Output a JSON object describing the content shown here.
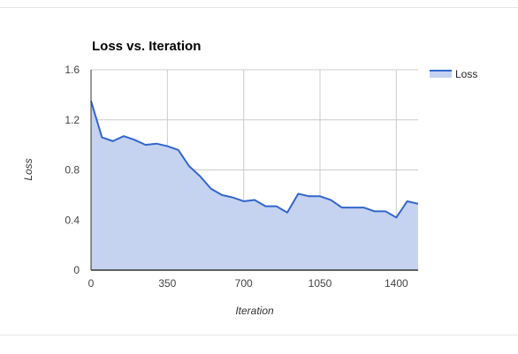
{
  "chart_data": {
    "type": "area",
    "title": "Loss vs. Iteration",
    "xlabel": "Iteration",
    "ylabel": "Loss",
    "xlim": [
      0,
      1500
    ],
    "ylim": [
      0,
      1.6
    ],
    "x_ticks": [
      0,
      350,
      700,
      1050,
      1400
    ],
    "x_tick_labels": [
      "0",
      "350",
      "700",
      "1050",
      "1400"
    ],
    "y_ticks": [
      0,
      0.4,
      0.8,
      1.2,
      1.6
    ],
    "y_tick_labels": [
      "0",
      "0.4",
      "0.8",
      "1.2",
      "1.6"
    ],
    "grid": true,
    "legend_position": "top-right",
    "series": [
      {
        "name": "Loss",
        "color": "#3366cc",
        "fill_color": "#c5d3f1",
        "x": [
          0,
          50,
          100,
          150,
          200,
          250,
          300,
          350,
          400,
          450,
          500,
          550,
          600,
          650,
          700,
          750,
          800,
          850,
          900,
          950,
          1000,
          1050,
          1100,
          1150,
          1200,
          1250,
          1300,
          1350,
          1400,
          1450,
          1500
        ],
        "y": [
          1.35,
          1.06,
          1.03,
          1.07,
          1.04,
          1.0,
          1.01,
          0.99,
          0.96,
          0.83,
          0.75,
          0.65,
          0.6,
          0.58,
          0.55,
          0.56,
          0.51,
          0.51,
          0.46,
          0.61,
          0.59,
          0.59,
          0.56,
          0.5,
          0.5,
          0.5,
          0.47,
          0.47,
          0.42,
          0.55,
          0.53
        ]
      }
    ]
  }
}
